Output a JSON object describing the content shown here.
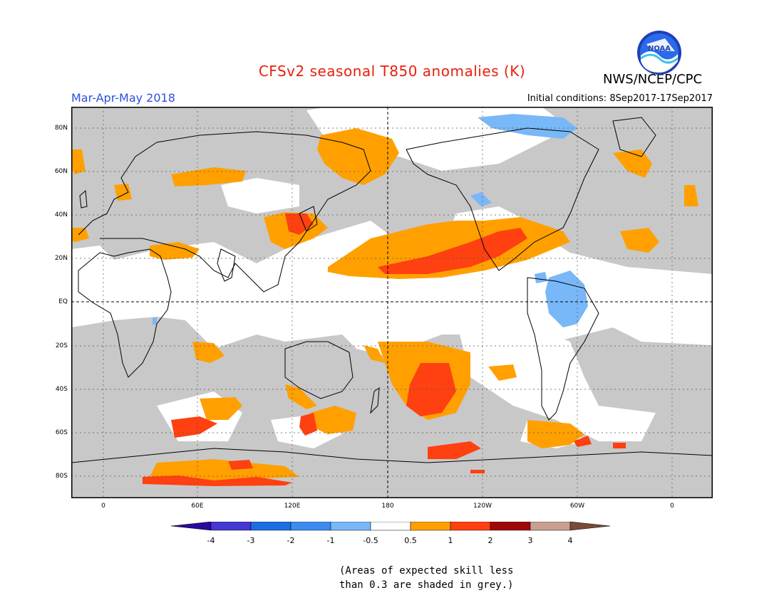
{
  "title": "CFSv2 seasonal T850 anomalies (K)",
  "period": "Mar-Apr-May 2018",
  "initial_conditions": "Initial conditions: 8Sep2017-17Sep2017",
  "agency": "NWS/NCEP/CPC",
  "logo_text": "NOAA",
  "lat_labels": [
    "80N",
    "60N",
    "40N",
    "20N",
    "EQ",
    "20S",
    "40S",
    "60S",
    "80S"
  ],
  "lon_labels": [
    "0",
    "60E",
    "120E",
    "180",
    "120W",
    "60W",
    "0"
  ],
  "colorbar": {
    "labels": [
      "-4",
      "-3",
      "-2",
      "-1",
      "-0.5",
      "0.5",
      "1",
      "2",
      "3",
      "4"
    ],
    "colors": [
      "#2a0a9c",
      "#4438d0",
      "#1e6ee0",
      "#3c8cf0",
      "#78b8f8",
      "#ffffff",
      "#ffa000",
      "#ff4010",
      "#a00808",
      "#c8a090",
      "#7a4a38"
    ]
  },
  "note": [
    "(Areas of expected skill less",
    "than 0.3 are shaded in grey.)"
  ],
  "colors": {
    "grey": "#c8c8c8",
    "warm1": "#ffa000",
    "warm2": "#ff4010",
    "cool1": "#78b8f8"
  }
}
